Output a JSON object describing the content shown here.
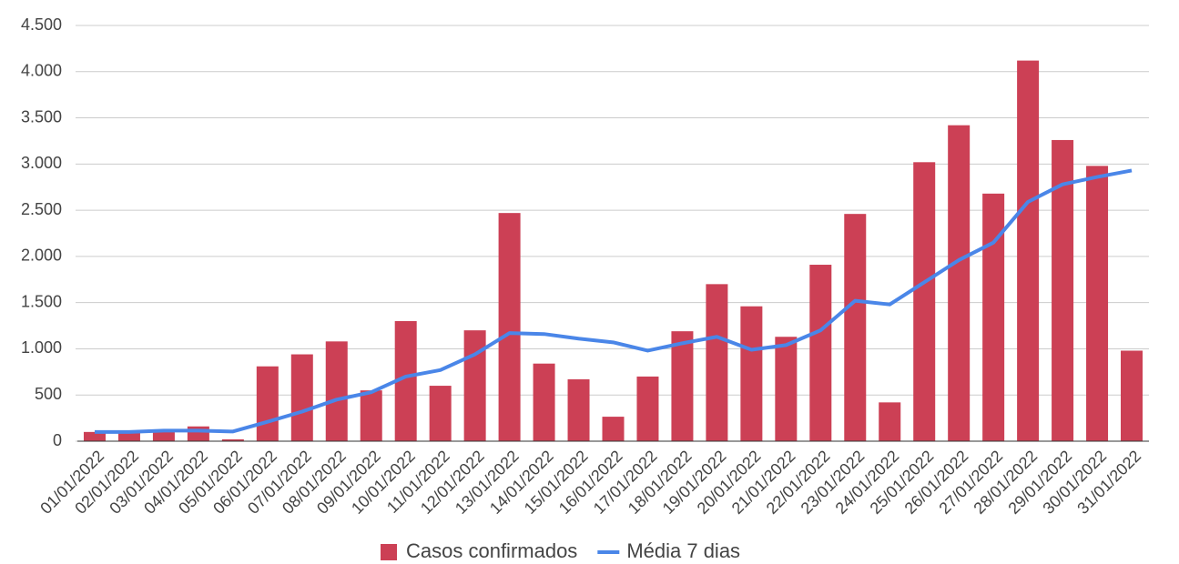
{
  "chart_data": {
    "type": "combo",
    "categories": [
      "01/01/2022",
      "02/01/2022",
      "03/01/2022",
      "04/01/2022",
      "05/01/2022",
      "06/01/2022",
      "07/01/2022",
      "08/01/2022",
      "09/01/2022",
      "10/01/2022",
      "11/01/2022",
      "12/01/2022",
      "13/01/2022",
      "14/01/2022",
      "15/01/2022",
      "16/01/2022",
      "17/01/2022",
      "18/01/2022",
      "19/01/2022",
      "20/01/2022",
      "21/01/2022",
      "22/01/2022",
      "23/01/2022",
      "24/01/2022",
      "25/01/2022",
      "26/01/2022",
      "27/01/2022",
      "28/01/2022",
      "29/01/2022",
      "30/01/2022",
      "31/01/2022"
    ],
    "series": [
      {
        "name": "Casos confirmados",
        "type": "bar",
        "color": "#cc4055",
        "values": [
          100,
          90,
          110,
          160,
          20,
          810,
          940,
          1080,
          550,
          1300,
          600,
          1200,
          2470,
          840,
          670,
          265,
          700,
          1190,
          1700,
          1460,
          1130,
          1910,
          2460,
          420,
          3020,
          3420,
          2680,
          4120,
          3260,
          2980,
          980
        ]
      },
      {
        "name": "Média 7 dias",
        "type": "line",
        "color": "#4a86e8",
        "values": [
          100,
          100,
          115,
          115,
          105,
          210,
          320,
          450,
          530,
          700,
          770,
          940,
          1170,
          1160,
          1110,
          1070,
          980,
          1060,
          1130,
          990,
          1040,
          1200,
          1520,
          1480,
          1720,
          1960,
          2150,
          2590,
          2780,
          2860,
          2930
        ]
      }
    ],
    "ylim": [
      0,
      4500
    ],
    "yticks": [
      0,
      500,
      {
        "value": 1000,
        "label": "1.000"
      },
      {
        "value": 1500,
        "label": "1.500"
      },
      {
        "value": 2000,
        "label": "2.000"
      },
      {
        "value": 2500,
        "label": "2.500"
      },
      {
        "value": 3000,
        "label": "3.000"
      },
      {
        "value": 3500,
        "label": "3.500"
      },
      {
        "value": 4000,
        "label": "4.000"
      },
      {
        "value": 4500,
        "label": "4.500"
      }
    ],
    "grid": true,
    "legend": "bottom"
  }
}
